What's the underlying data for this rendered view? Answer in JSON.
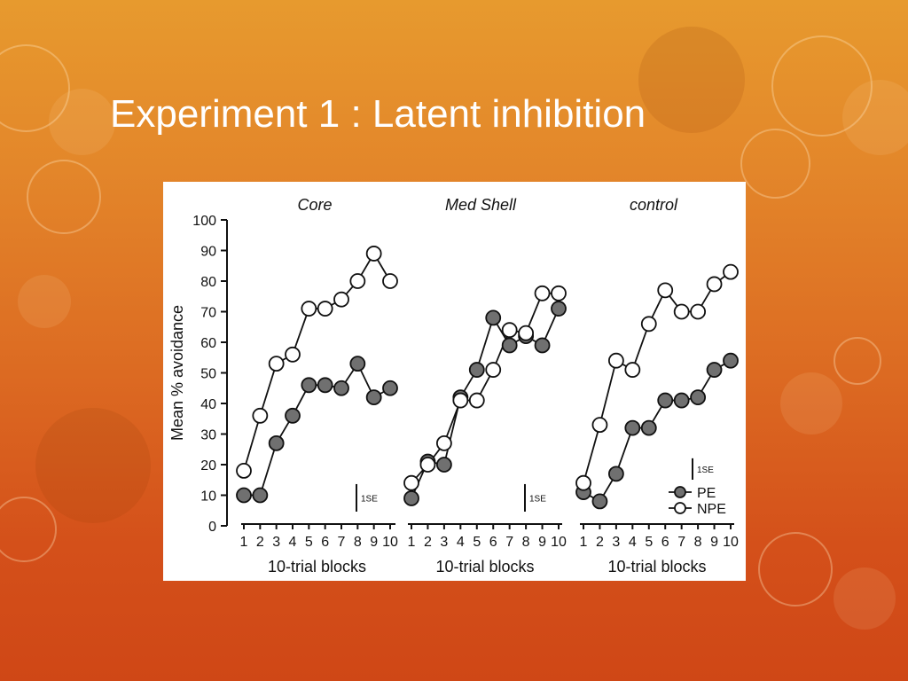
{
  "slide": {
    "title": "Experiment 1 : Latent inhibition"
  },
  "chart_data": [
    {
      "type": "line",
      "title": "Core",
      "xlabel": "10-trial blocks",
      "ylabel": "Mean % avoidance",
      "x": [
        1,
        2,
        3,
        4,
        5,
        6,
        7,
        8,
        9,
        10
      ],
      "xlim": [
        1,
        10
      ],
      "ylim": [
        0,
        100
      ],
      "yticks": [
        0,
        10,
        20,
        30,
        40,
        50,
        60,
        70,
        80,
        90,
        100
      ],
      "error_bar_label": "1SE",
      "error_bar_size": 9,
      "series": [
        {
          "name": "PE",
          "marker": "filled-circle",
          "values": [
            10,
            10,
            27,
            36,
            46,
            46,
            45,
            53,
            42,
            45
          ]
        },
        {
          "name": "NPE",
          "marker": "open-circle",
          "values": [
            18,
            36,
            53,
            56,
            71,
            71,
            74,
            80,
            89,
            80
          ]
        }
      ]
    },
    {
      "type": "line",
      "title": "Med Shell",
      "xlabel": "10-trial blocks",
      "x": [
        1,
        2,
        3,
        4,
        5,
        6,
        7,
        8,
        9,
        10
      ],
      "xlim": [
        1,
        10
      ],
      "ylim": [
        0,
        100
      ],
      "error_bar_label": "1SE",
      "error_bar_size": 9,
      "series": [
        {
          "name": "PE",
          "marker": "filled-circle",
          "values": [
            9,
            21,
            20,
            42,
            51,
            68,
            59,
            62,
            59,
            71
          ]
        },
        {
          "name": "NPE",
          "marker": "open-circle",
          "values": [
            14,
            20,
            27,
            41,
            41,
            51,
            64,
            63,
            76,
            76
          ]
        }
      ]
    },
    {
      "type": "line",
      "title": "control",
      "xlabel": "10-trial blocks",
      "x": [
        1,
        2,
        3,
        4,
        5,
        6,
        7,
        8,
        9,
        10
      ],
      "xlim": [
        1,
        10
      ],
      "ylim": [
        0,
        100
      ],
      "error_bar_label": "1SE",
      "error_bar_size": 7,
      "legend": {
        "placement": "bottom-right",
        "entries": [
          "PE",
          "NPE"
        ]
      },
      "series": [
        {
          "name": "PE",
          "marker": "filled-circle",
          "values": [
            11,
            8,
            17,
            32,
            32,
            41,
            41,
            42,
            51,
            54
          ]
        },
        {
          "name": "NPE",
          "marker": "open-circle",
          "values": [
            14,
            33,
            54,
            51,
            66,
            77,
            70,
            70,
            79,
            83
          ]
        }
      ]
    }
  ],
  "colors": {
    "background_top": "#e79a2e",
    "background_bottom": "#cf4716",
    "title_text": "#ffffff",
    "figure_background": "#ffffff",
    "pe_fill": "#707070",
    "npe_fill": "#ffffff",
    "ink": "#111111"
  }
}
